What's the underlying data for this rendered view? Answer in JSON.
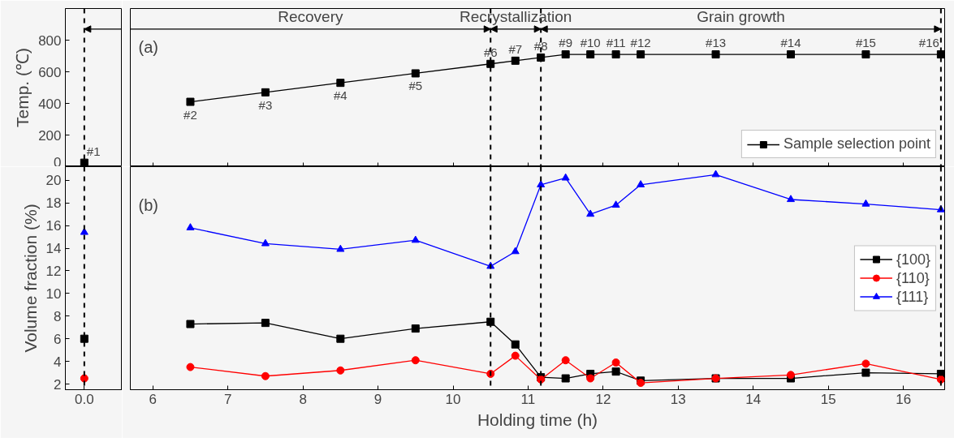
{
  "chart_data": [
    {
      "type": "scatter",
      "ylabel": "Temp. (℃)",
      "categories": [
        "0.0"
      ],
      "series": [
        {
          "color": "#000000",
          "values": [
            25
          ]
        }
      ],
      "marker": "square",
      "ylim": [
        0,
        1000
      ],
      "yticks": [
        0,
        200,
        400,
        600,
        800
      ],
      "tick_labels": "y",
      "grid": false,
      "annotations": [
        {
          "text": "#1",
          "x": "0.0",
          "y": 25
        }
      ],
      "ref_lines": [
        {
          "axis": "x",
          "value": "0.0",
          "line_style": "dashed"
        }
      ]
    },
    {
      "type": "line",
      "x": [
        6.5,
        7.5,
        8.5,
        9.5,
        10.5,
        10.83,
        11.17,
        11.5,
        11.83,
        12.17,
        12.5,
        13.5,
        14.5,
        15.5,
        16.5
      ],
      "series": [
        {
          "name": "Sample selection point",
          "color": "#000000",
          "values": [
            410,
            470,
            530,
            590,
            650,
            670,
            690,
            710,
            710,
            710,
            710,
            710,
            710,
            710,
            710
          ]
        }
      ],
      "marker": "square",
      "xlim": [
        5.7,
        16.55
      ],
      "xticks": [
        6,
        7,
        8,
        9,
        10,
        11,
        12,
        13,
        14,
        15,
        16
      ],
      "ylim": [
        0,
        1000
      ],
      "yticks": [
        0,
        200,
        400,
        600,
        800
      ],
      "tick_labels": false,
      "legend": "bottom right",
      "grid": false,
      "annotations": [
        "(a)",
        "Recovery",
        "Recrystallization",
        "Grain growth",
        {
          "text": "#2",
          "x": 6.5,
          "y": 410
        },
        {
          "text": "#3",
          "x": 7.5,
          "y": 470
        },
        {
          "text": "#4",
          "x": 8.5,
          "y": 530
        },
        {
          "text": "#5",
          "x": 9.5,
          "y": 590
        },
        {
          "text": "#6",
          "x": 10.5,
          "y": 650
        },
        {
          "text": "#7",
          "x": 10.83,
          "y": 670
        },
        {
          "text": "#8",
          "x": 11.17,
          "y": 690
        },
        {
          "text": "#9",
          "x": 11.5,
          "y": 710
        },
        {
          "text": "#10",
          "x": 11.83,
          "y": 710
        },
        {
          "text": "#11",
          "x": 12.17,
          "y": 710
        },
        {
          "text": "#12",
          "x": 12.5,
          "y": 710
        },
        {
          "text": "#13",
          "x": 13.5,
          "y": 710
        },
        {
          "text": "#14",
          "x": 14.5,
          "y": 710
        },
        {
          "text": "#15",
          "x": 15.5,
          "y": 710
        },
        {
          "text": "#16",
          "x": 16.5,
          "y": 710
        }
      ],
      "ref_lines": [
        {
          "axis": "x",
          "value": 10.5,
          "line_style": "dashed"
        },
        {
          "axis": "x",
          "value": 11.17,
          "line_style": "dashed"
        },
        {
          "axis": "x",
          "value": 16.5,
          "line_style": "dashed"
        }
      ]
    },
    {
      "type": "scatter",
      "ylabel": "Volume fraction (%)",
      "categories": [
        "0.0"
      ],
      "series": [
        {
          "color": "#000000",
          "marker": "square",
          "values": [
            6.0
          ]
        },
        {
          "color": "#ff0000",
          "marker": "circle",
          "values": [
            2.5
          ]
        },
        {
          "color": "#0000ff",
          "marker": "triangle",
          "values": [
            15.4
          ]
        }
      ],
      "ylim": [
        1.5,
        21.2
      ],
      "yticks": [
        2,
        4,
        6,
        8,
        10,
        12,
        14,
        16,
        18,
        20
      ],
      "grid": false,
      "ref_lines": [
        {
          "axis": "x",
          "value": "0.0",
          "line_style": "dashed"
        }
      ]
    },
    {
      "type": "line",
      "xlabel": "Holding time (h)",
      "x": [
        6.5,
        7.5,
        8.5,
        9.5,
        10.5,
        10.83,
        11.17,
        11.5,
        11.83,
        12.17,
        12.5,
        13.5,
        14.5,
        15.5,
        16.5
      ],
      "series": [
        {
          "name": "{100}",
          "color": "#000000",
          "marker": "square",
          "values": [
            7.3,
            7.4,
            6.0,
            6.9,
            7.5,
            5.5,
            2.6,
            2.5,
            2.9,
            3.1,
            2.3,
            2.5,
            2.5,
            3.0,
            2.9
          ]
        },
        {
          "name": "{110}",
          "color": "#ff0000",
          "marker": "circle",
          "values": [
            3.5,
            2.7,
            3.2,
            4.1,
            2.9,
            4.5,
            2.4,
            4.1,
            2.5,
            3.9,
            2.1,
            2.5,
            2.8,
            3.8,
            2.4
          ]
        },
        {
          "name": "{111}",
          "color": "#0000ff",
          "marker": "triangle",
          "values": [
            15.8,
            14.4,
            13.9,
            14.7,
            12.4,
            13.7,
            19.6,
            20.2,
            17.0,
            17.8,
            19.6,
            20.5,
            18.3,
            17.9,
            17.4
          ]
        }
      ],
      "xlim": [
        5.7,
        16.55
      ],
      "xticks": [
        6,
        7,
        8,
        9,
        10,
        11,
        12,
        13,
        14,
        15,
        16
      ],
      "ylim": [
        1.5,
        21.2
      ],
      "yticks": [
        2,
        4,
        6,
        8,
        10,
        12,
        14,
        16,
        18,
        20
      ],
      "tick_labels": "x",
      "legend": "right",
      "grid": false,
      "annotations": [
        "(b)"
      ],
      "ref_lines": [
        {
          "axis": "x",
          "value": 10.5,
          "line_style": "dashed"
        },
        {
          "axis": "x",
          "value": 11.17,
          "line_style": "dashed"
        },
        {
          "axis": "x",
          "value": 16.5,
          "line_style": "dashed"
        }
      ]
    }
  ]
}
